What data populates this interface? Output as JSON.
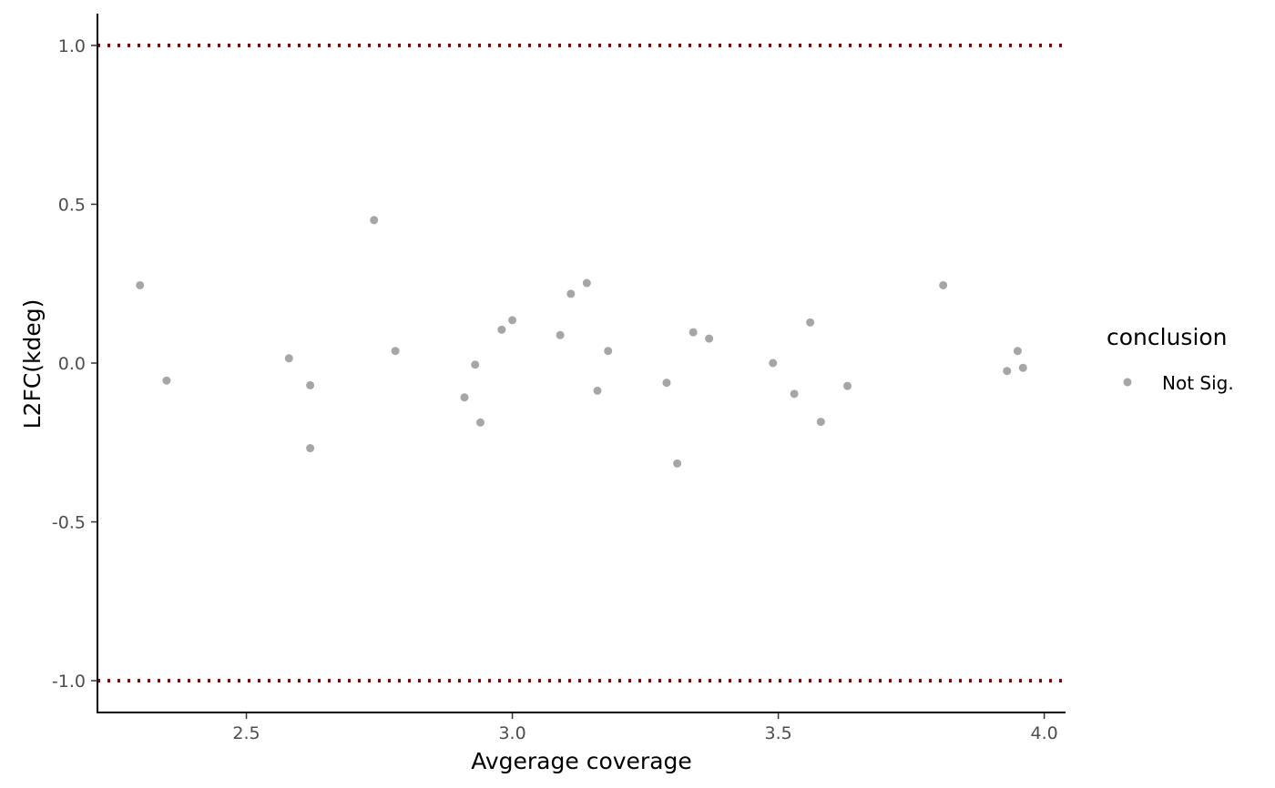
{
  "chart_data": {
    "type": "scatter",
    "xlabel": "Avgerage coverage",
    "ylabel": "L2FC(kdeg)",
    "xlim": [
      2.22,
      4.04
    ],
    "ylim": [
      -1.1,
      1.1
    ],
    "x_ticks": [
      2.5,
      3.0,
      3.5,
      4.0
    ],
    "x_tick_labels": [
      "2.5",
      "3.0",
      "3.5",
      "4.0"
    ],
    "y_ticks": [
      -1.0,
      -0.5,
      0.0,
      0.5,
      1.0
    ],
    "y_tick_labels": [
      "-1.0",
      "-0.5",
      "0.0",
      "0.5",
      "1.0"
    ],
    "grid": false,
    "reference_lines": [
      {
        "y": 1.0,
        "style": "dotted",
        "color": "#8b0000"
      },
      {
        "y": -1.0,
        "style": "dotted",
        "color": "#8b0000"
      }
    ],
    "series": [
      {
        "name": "Not Sig.",
        "color": "#a6a6a6",
        "points": [
          {
            "x": 2.3,
            "y": 0.245
          },
          {
            "x": 2.35,
            "y": -0.055
          },
          {
            "x": 2.58,
            "y": 0.015
          },
          {
            "x": 2.62,
            "y": -0.07
          },
          {
            "x": 2.62,
            "y": -0.268
          },
          {
            "x": 2.74,
            "y": 0.45
          },
          {
            "x": 2.78,
            "y": 0.038
          },
          {
            "x": 2.91,
            "y": -0.108
          },
          {
            "x": 2.93,
            "y": -0.005
          },
          {
            "x": 2.94,
            "y": -0.187
          },
          {
            "x": 2.98,
            "y": 0.105
          },
          {
            "x": 3.0,
            "y": 0.135
          },
          {
            "x": 3.09,
            "y": 0.088
          },
          {
            "x": 3.11,
            "y": 0.218
          },
          {
            "x": 3.14,
            "y": 0.252
          },
          {
            "x": 3.16,
            "y": -0.087
          },
          {
            "x": 3.18,
            "y": 0.038
          },
          {
            "x": 3.29,
            "y": -0.062
          },
          {
            "x": 3.31,
            "y": -0.316
          },
          {
            "x": 3.34,
            "y": 0.097
          },
          {
            "x": 3.37,
            "y": 0.077
          },
          {
            "x": 3.49,
            "y": 0.0
          },
          {
            "x": 3.53,
            "y": -0.097
          },
          {
            "x": 3.56,
            "y": 0.128
          },
          {
            "x": 3.58,
            "y": -0.185
          },
          {
            "x": 3.63,
            "y": -0.072
          },
          {
            "x": 3.81,
            "y": 0.245
          },
          {
            "x": 3.93,
            "y": -0.025
          },
          {
            "x": 3.95,
            "y": 0.038
          },
          {
            "x": 3.96,
            "y": -0.015
          }
        ]
      }
    ],
    "legend": {
      "title": "conclusion",
      "position": "right",
      "entries": [
        "Not Sig."
      ]
    }
  }
}
